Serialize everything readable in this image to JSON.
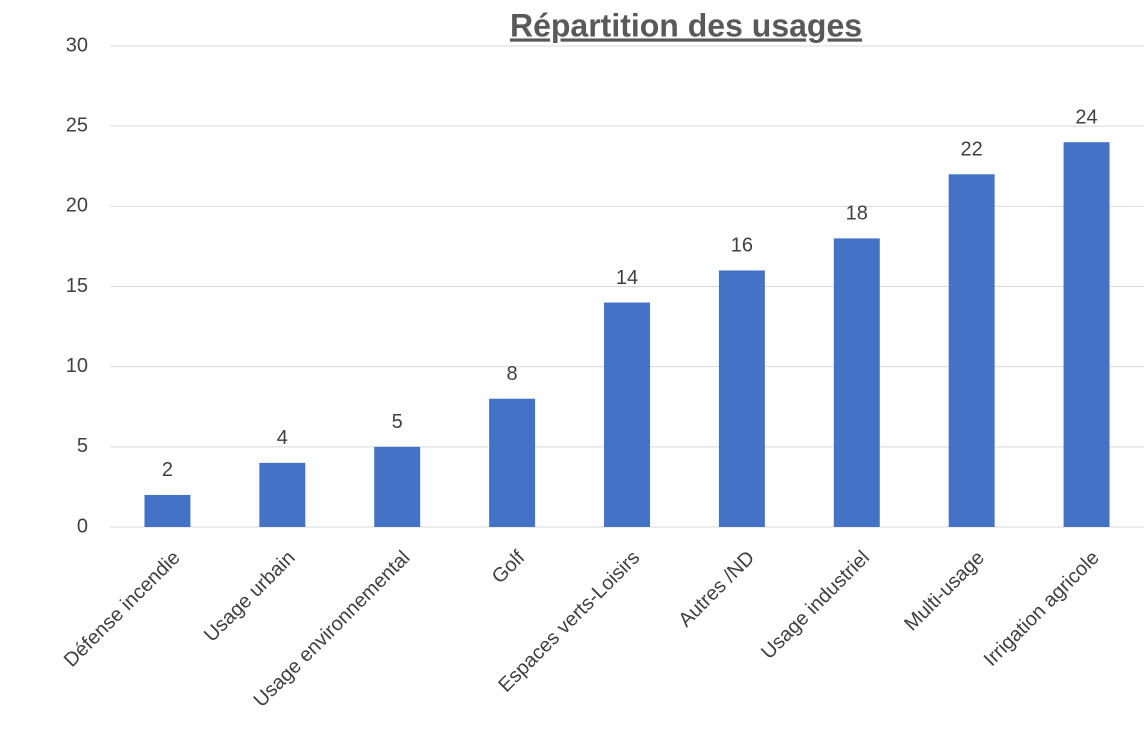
{
  "chart_data": {
    "type": "bar",
    "title": "Répartition des usages",
    "categories": [
      "Défense incendie",
      "Usage urbain",
      "Usage environnemental",
      "Golf",
      "Espaces verts-Loisirs",
      "Autres /ND",
      "Usage industriel",
      "Multi-usage",
      "Irrigation agricole"
    ],
    "values": [
      2,
      4,
      5,
      8,
      14,
      16,
      18,
      22,
      24
    ],
    "color": "#4472c4",
    "ylim": [
      0,
      30
    ],
    "yticks": [
      0,
      5,
      10,
      15,
      20,
      25,
      30
    ],
    "grid": true
  }
}
